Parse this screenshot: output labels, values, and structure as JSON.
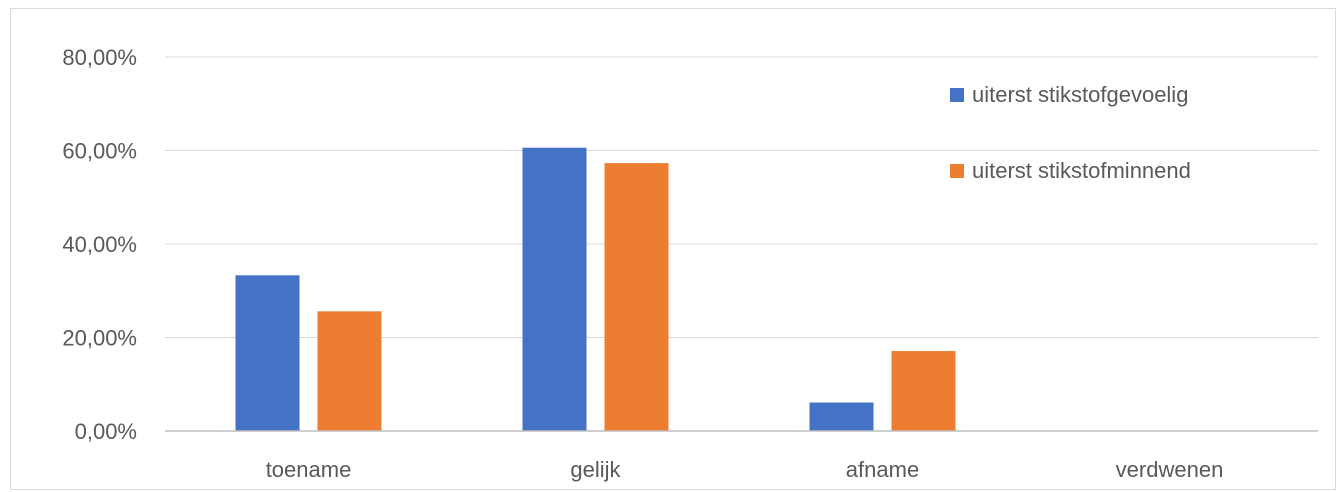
{
  "chart_data": {
    "type": "bar",
    "categories": [
      "toename",
      "gelijk",
      "afname",
      "verdwenen"
    ],
    "series": [
      {
        "name": "uiterst stikstofgevoelig",
        "color": "#4472C4",
        "values": [
          33.3,
          60.6,
          6.1,
          0
        ]
      },
      {
        "name": "uiterst stikstofminnend",
        "color": "#ED7D31",
        "values": [
          25.6,
          57.3,
          17.1,
          0
        ]
      }
    ],
    "y_ticks": [
      "0,00%",
      "20,00%",
      "40,00%",
      "60,00%",
      "80,00%"
    ],
    "ylim": [
      0,
      80
    ],
    "grid": true,
    "legend_position": "top-right",
    "gridline_color": "#d9d9d9",
    "axis_color": "#bfbfbf"
  }
}
